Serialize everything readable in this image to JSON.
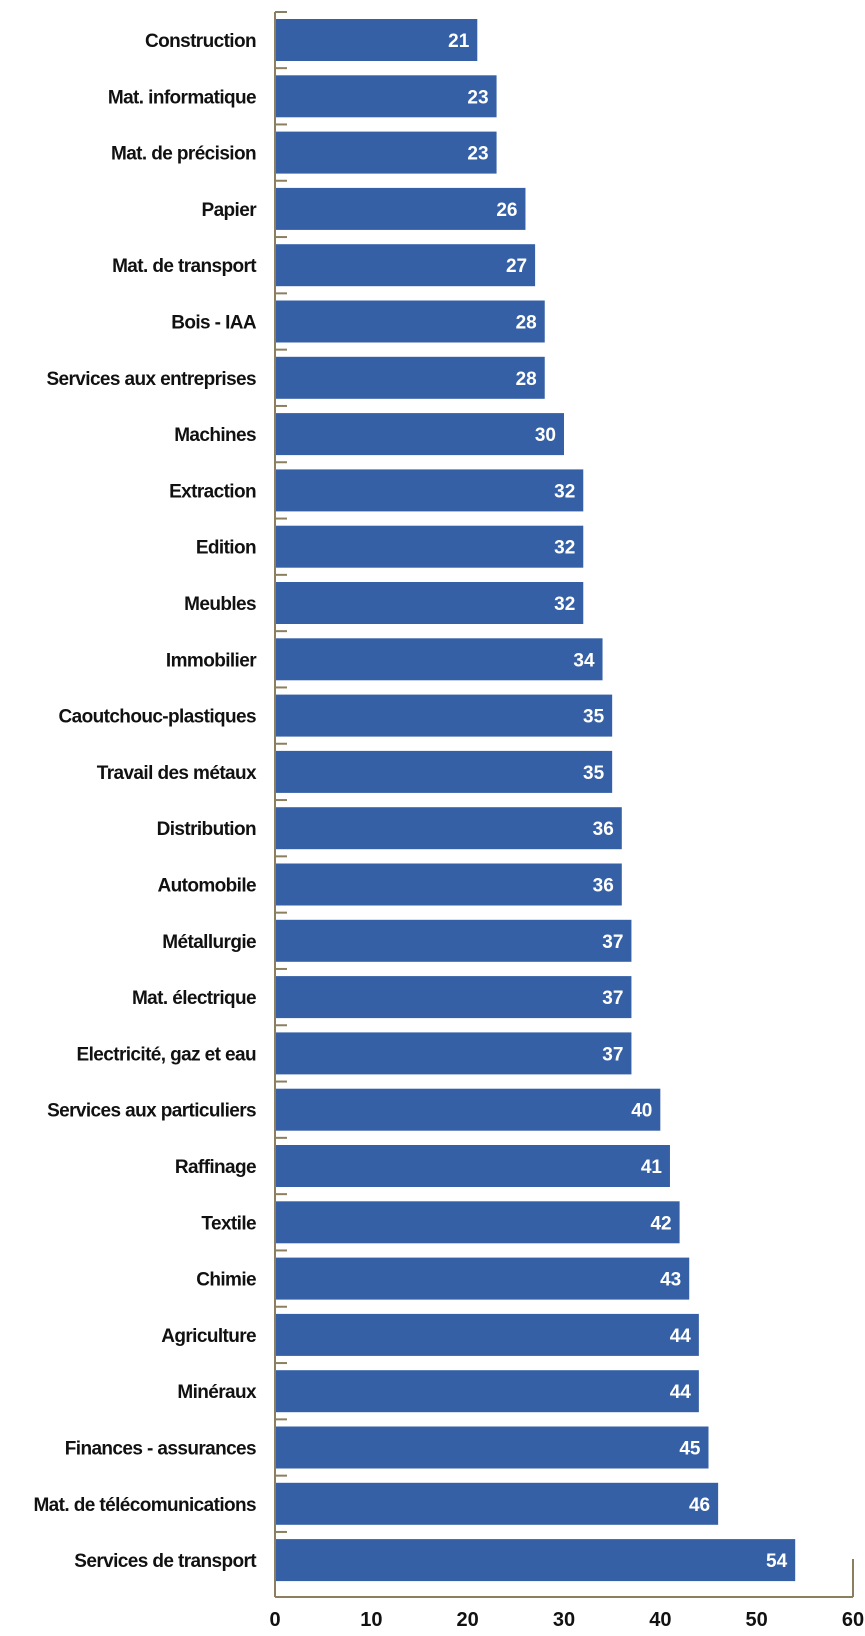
{
  "chart_data": {
    "type": "bar",
    "orientation": "horizontal",
    "categories": [
      "Construction",
      "Mat. informatique",
      "Mat. de précision",
      "Papier",
      "Mat. de transport",
      "Bois - IAA",
      "Services aux entreprises",
      "Machines",
      "Extraction",
      "Edition",
      "Meubles",
      "Immobilier",
      "Caoutchouc-plastiques",
      "Travail des métaux",
      "Distribution",
      "Automobile",
      "Métallurgie",
      "Mat. électrique",
      "Electricité, gaz et eau",
      "Services aux particuliers",
      "Raffinage",
      "Textile",
      "Chimie",
      "Agriculture",
      "Minéraux",
      "Finances - assurances",
      "Mat. de télécomunications",
      "Services de transport"
    ],
    "values": [
      21,
      23,
      23,
      26,
      27,
      28,
      28,
      30,
      32,
      32,
      32,
      34,
      35,
      35,
      36,
      36,
      37,
      37,
      37,
      40,
      41,
      42,
      43,
      44,
      44,
      45,
      46,
      54
    ],
    "xlim": [
      0,
      60
    ],
    "xticks": [
      "0",
      "10",
      "20",
      "30",
      "40",
      "50",
      "60"
    ],
    "title": "",
    "xlabel": "",
    "ylabel": "",
    "grid": false,
    "legend": "none",
    "colors": {
      "bar": "#3560a6",
      "axis": "#8a8060",
      "value_text": "#ffffff",
      "label_text": "#111111"
    }
  }
}
